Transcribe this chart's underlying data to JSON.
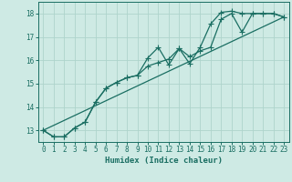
{
  "xlabel": "Humidex (Indice chaleur)",
  "bg_color": "#ceeae4",
  "grid_color": "#aed4cc",
  "line_color": "#1a6e62",
  "xlim": [
    -0.5,
    23.5
  ],
  "ylim": [
    12.5,
    18.5
  ],
  "xticks": [
    0,
    1,
    2,
    3,
    4,
    5,
    6,
    7,
    8,
    9,
    10,
    11,
    12,
    13,
    14,
    15,
    16,
    17,
    18,
    19,
    20,
    21,
    22,
    23
  ],
  "yticks": [
    13,
    14,
    15,
    16,
    17,
    18
  ],
  "line1_x": [
    0,
    1,
    2,
    3,
    4,
    5,
    6,
    7,
    8,
    9,
    10,
    11,
    12,
    13,
    14,
    15,
    16,
    17,
    18,
    19,
    20,
    21,
    22,
    23
  ],
  "line1_y": [
    13.0,
    12.72,
    12.72,
    13.1,
    13.35,
    14.2,
    14.8,
    15.05,
    15.25,
    15.35,
    16.1,
    16.55,
    15.8,
    16.5,
    15.85,
    16.55,
    17.55,
    18.05,
    18.1,
    18.0,
    18.0,
    18.0,
    18.0,
    17.85
  ],
  "line2_x": [
    0,
    1,
    2,
    3,
    4,
    5,
    6,
    7,
    8,
    9,
    10,
    11,
    12,
    13,
    14,
    15,
    16,
    17,
    18,
    19,
    20,
    21,
    22,
    23
  ],
  "line2_y": [
    13.0,
    12.72,
    12.72,
    13.1,
    13.35,
    14.2,
    14.8,
    15.05,
    15.25,
    15.35,
    15.75,
    15.9,
    16.05,
    16.5,
    16.15,
    16.4,
    16.55,
    17.75,
    18.0,
    17.2,
    18.0,
    18.0,
    18.0,
    17.85
  ],
  "line3_x": [
    0,
    23
  ],
  "line3_y": [
    13.0,
    17.85
  ]
}
